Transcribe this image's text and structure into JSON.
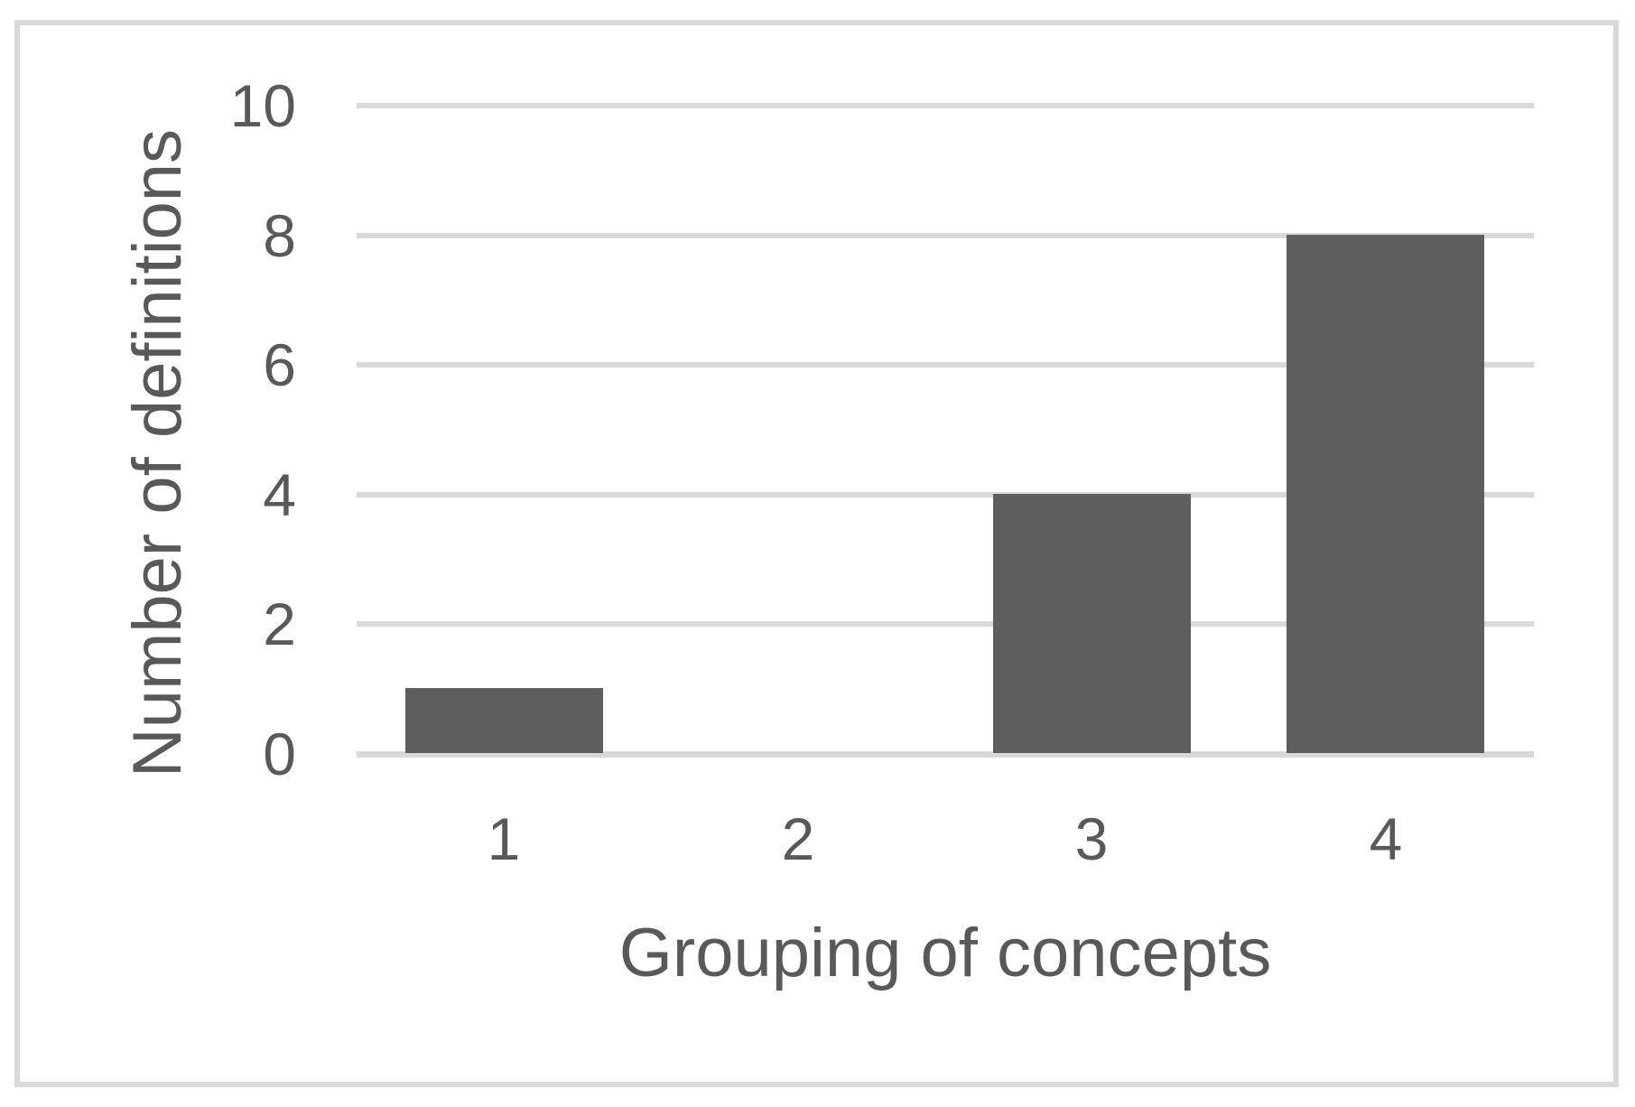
{
  "chart_data": {
    "type": "bar",
    "categories": [
      "1",
      "2",
      "3",
      "4"
    ],
    "values": [
      1,
      0,
      4,
      8
    ],
    "title": "",
    "xlabel": "Grouping of concepts",
    "ylabel": "Number of definitions",
    "yticks": [
      0,
      2,
      4,
      6,
      8,
      10
    ],
    "ylim": [
      0,
      10
    ],
    "grid": "horizontal-only",
    "legend": "none",
    "bar_color": "#5e5e5e",
    "text_color": "#595959",
    "gridline_color": "#d9d9d9",
    "frame_border_color": "#d9d9d9"
  }
}
